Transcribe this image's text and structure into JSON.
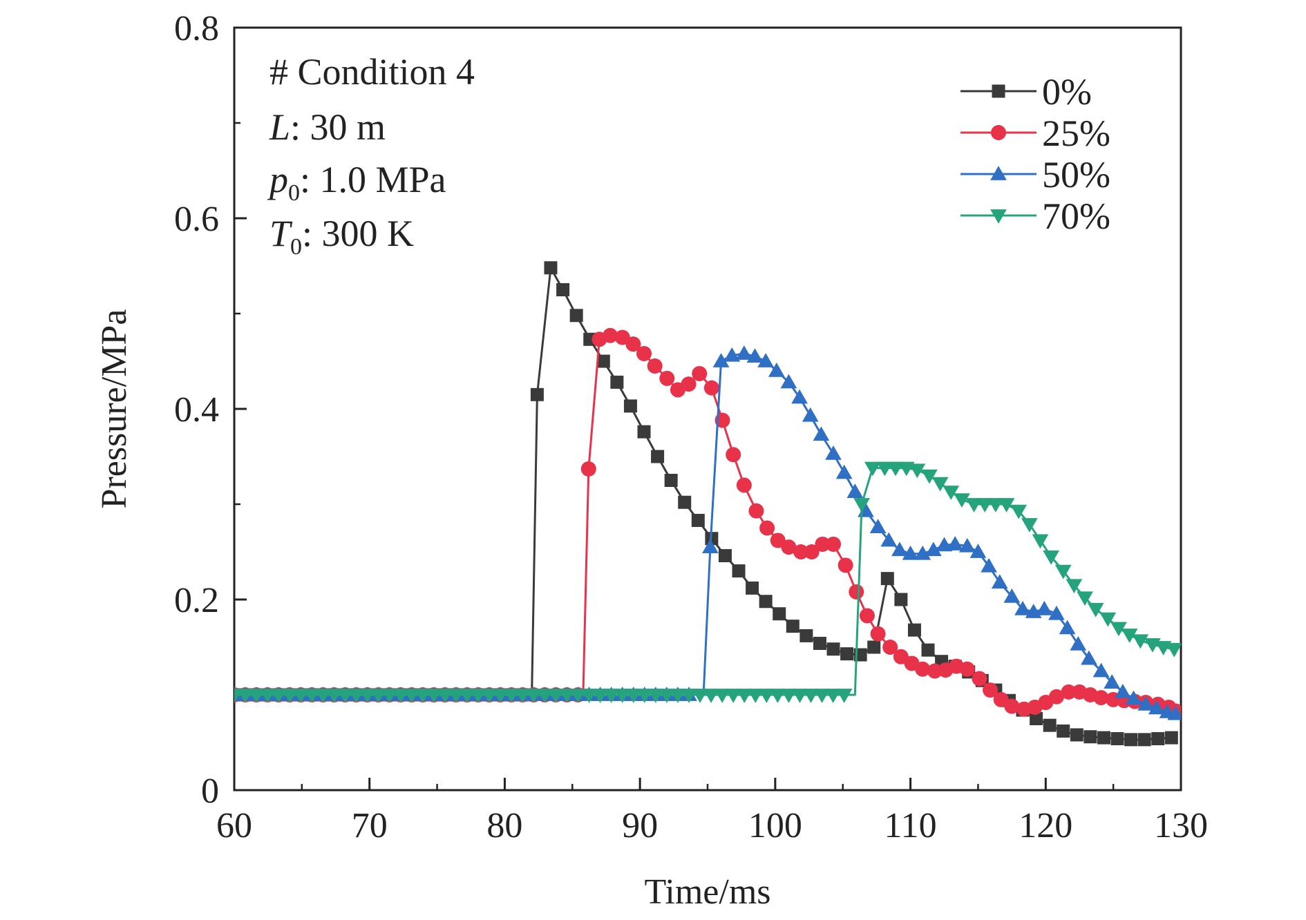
{
  "chart_data": {
    "type": "line",
    "title": "",
    "xlabel": "Time/ms",
    "ylabel": "Pressure/MPa",
    "xlim": [
      60,
      130
    ],
    "ylim": [
      0,
      0.8
    ],
    "xticks": [
      60,
      70,
      80,
      90,
      100,
      110,
      120,
      130
    ],
    "yticks": [
      0,
      0.2,
      0.4,
      0.6,
      0.8
    ],
    "xtick_labels": [
      "60",
      "70",
      "80",
      "90",
      "100",
      "110",
      "120",
      "130"
    ],
    "ytick_labels": [
      "0",
      "0.2",
      "0.4",
      "0.6",
      "0.8"
    ],
    "grid": false,
    "legend_position": "top-right",
    "annotations": {
      "line1": {
        "text": "# Condition 4"
      },
      "line2": {
        "italic": "L",
        "text": ": 30 m"
      },
      "line3": {
        "italic": "p",
        "sub": "0",
        "text": ": 1.0 MPa"
      },
      "line4": {
        "italic": "T",
        "sub": "0",
        "text": ": 300 K"
      }
    },
    "series": [
      {
        "name": "0%",
        "color": "#3a3a3a",
        "marker": "square",
        "x": [
          60,
          82,
          82.4,
          83.4,
          84.3,
          85.3,
          86.3,
          87.3,
          88.3,
          89.3,
          90.3,
          91.3,
          92.3,
          93.3,
          94.3,
          95.3,
          96.3,
          97.3,
          98.3,
          99.3,
          100.3,
          101.3,
          102.3,
          103.3,
          104.3,
          105.3,
          106.3,
          107.3,
          108.3,
          109.3,
          110.3,
          111.3,
          112.3,
          113.3,
          114.3,
          115.3,
          116.3,
          117.3,
          118.3,
          119.3,
          120.3,
          121.3,
          122.3,
          123.3,
          124.3,
          125.3,
          126.3,
          127.3,
          128.3,
          129.3
        ],
        "y": [
          0.1,
          0.1,
          0.415,
          0.548,
          0.525,
          0.498,
          0.473,
          0.45,
          0.428,
          0.403,
          0.376,
          0.35,
          0.325,
          0.302,
          0.283,
          0.264,
          0.246,
          0.23,
          0.212,
          0.198,
          0.185,
          0.172,
          0.162,
          0.154,
          0.148,
          0.143,
          0.142,
          0.15,
          0.222,
          0.2,
          0.168,
          0.147,
          0.135,
          0.13,
          0.124,
          0.115,
          0.105,
          0.094,
          0.084,
          0.075,
          0.068,
          0.062,
          0.058,
          0.056,
          0.055,
          0.054,
          0.053,
          0.053,
          0.054,
          0.055
        ]
      },
      {
        "name": "25%",
        "color": "#e8324a",
        "marker": "circle",
        "x": [
          60,
          85.8,
          86.2,
          87,
          87.8,
          88.7,
          89.5,
          90.3,
          91.1,
          92,
          92.8,
          93.6,
          94.4,
          95.3,
          96.1,
          96.9,
          97.7,
          98.6,
          99.4,
          100.2,
          101,
          101.9,
          102.7,
          103.5,
          104.3,
          105.2,
          106,
          106.8,
          107.6,
          108.5,
          109.3,
          110.1,
          110.9,
          111.8,
          112.6,
          113.4,
          114.2,
          115.1,
          115.9,
          116.7,
          117.5,
          118.4,
          119.2,
          120,
          120.8,
          121.7,
          122.5,
          123.3,
          124.1,
          125,
          125.8,
          126.6,
          127.4,
          128.3,
          129.1,
          129.6
        ],
        "y": [
          0.1,
          0.1,
          0.337,
          0.473,
          0.477,
          0.475,
          0.468,
          0.458,
          0.445,
          0.432,
          0.42,
          0.426,
          0.437,
          0.422,
          0.388,
          0.352,
          0.32,
          0.293,
          0.275,
          0.262,
          0.255,
          0.25,
          0.25,
          0.258,
          0.258,
          0.236,
          0.208,
          0.183,
          0.164,
          0.15,
          0.14,
          0.133,
          0.127,
          0.125,
          0.126,
          0.13,
          0.127,
          0.117,
          0.105,
          0.095,
          0.088,
          0.085,
          0.087,
          0.092,
          0.098,
          0.103,
          0.103,
          0.1,
          0.097,
          0.095,
          0.094,
          0.093,
          0.092,
          0.09,
          0.087,
          0.083
        ]
      },
      {
        "name": "50%",
        "color": "#2f6fc4",
        "marker": "triangle-up",
        "x": [
          60,
          94.7,
          95.2,
          96,
          96.8,
          97.7,
          98.5,
          99.3,
          100.1,
          101,
          101.8,
          102.6,
          103.4,
          104.3,
          105.1,
          105.9,
          106.7,
          107.6,
          108.4,
          109.2,
          110,
          110.9,
          111.7,
          112.5,
          113.3,
          114.2,
          115,
          115.8,
          116.6,
          117.5,
          118.3,
          119.1,
          119.9,
          120.8,
          121.6,
          122.4,
          123.2,
          124.1,
          124.9,
          125.7,
          126.5,
          127.4,
          128.2,
          129,
          129.6
        ],
        "y": [
          0.1,
          0.1,
          0.255,
          0.45,
          0.456,
          0.458,
          0.455,
          0.45,
          0.44,
          0.428,
          0.412,
          0.393,
          0.373,
          0.353,
          0.333,
          0.313,
          0.293,
          0.276,
          0.262,
          0.252,
          0.248,
          0.248,
          0.252,
          0.257,
          0.258,
          0.256,
          0.25,
          0.235,
          0.218,
          0.203,
          0.19,
          0.187,
          0.19,
          0.185,
          0.17,
          0.153,
          0.138,
          0.125,
          0.113,
          0.103,
          0.096,
          0.09,
          0.086,
          0.082,
          0.08
        ]
      },
      {
        "name": "70%",
        "color": "#24a37c",
        "marker": "triangle-down",
        "x": [
          60,
          105.9,
          106.4,
          107.2,
          108.1,
          108.9,
          109.7,
          110.5,
          111.4,
          112.2,
          113,
          113.8,
          114.7,
          115.5,
          116.3,
          117.1,
          118,
          118.8,
          119.6,
          120.4,
          121.3,
          122.1,
          122.9,
          123.7,
          124.6,
          125.4,
          126.2,
          127,
          127.9,
          128.7,
          129.5
        ],
        "y": [
          0.1,
          0.1,
          0.3,
          0.338,
          0.338,
          0.338,
          0.338,
          0.336,
          0.33,
          0.322,
          0.313,
          0.305,
          0.3,
          0.3,
          0.3,
          0.3,
          0.293,
          0.279,
          0.262,
          0.245,
          0.23,
          0.215,
          0.202,
          0.19,
          0.18,
          0.17,
          0.163,
          0.157,
          0.153,
          0.15,
          0.148
        ]
      }
    ]
  }
}
